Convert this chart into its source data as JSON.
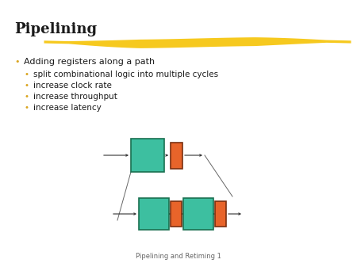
{
  "title": "Pipelining",
  "background_color": "#ffffff",
  "title_color": "#1a1a1a",
  "title_fontsize": 13,
  "bullet_color": "#DAA520",
  "text_color": "#1a1a1a",
  "teal_color": "#3DBFA0",
  "orange_color": "#E8642A",
  "underline_color": "#F5C200",
  "footer_text": "Pipelining and Retiming 1",
  "bullets": [
    {
      "level": 0,
      "text": "Adding registers along a path"
    },
    {
      "level": 1,
      "text": "split combinational logic into multiple cycles"
    },
    {
      "level": 1,
      "text": "increase clock rate"
    },
    {
      "level": 1,
      "text": "increase throughput"
    },
    {
      "level": 1,
      "text": "increase latency"
    }
  ]
}
